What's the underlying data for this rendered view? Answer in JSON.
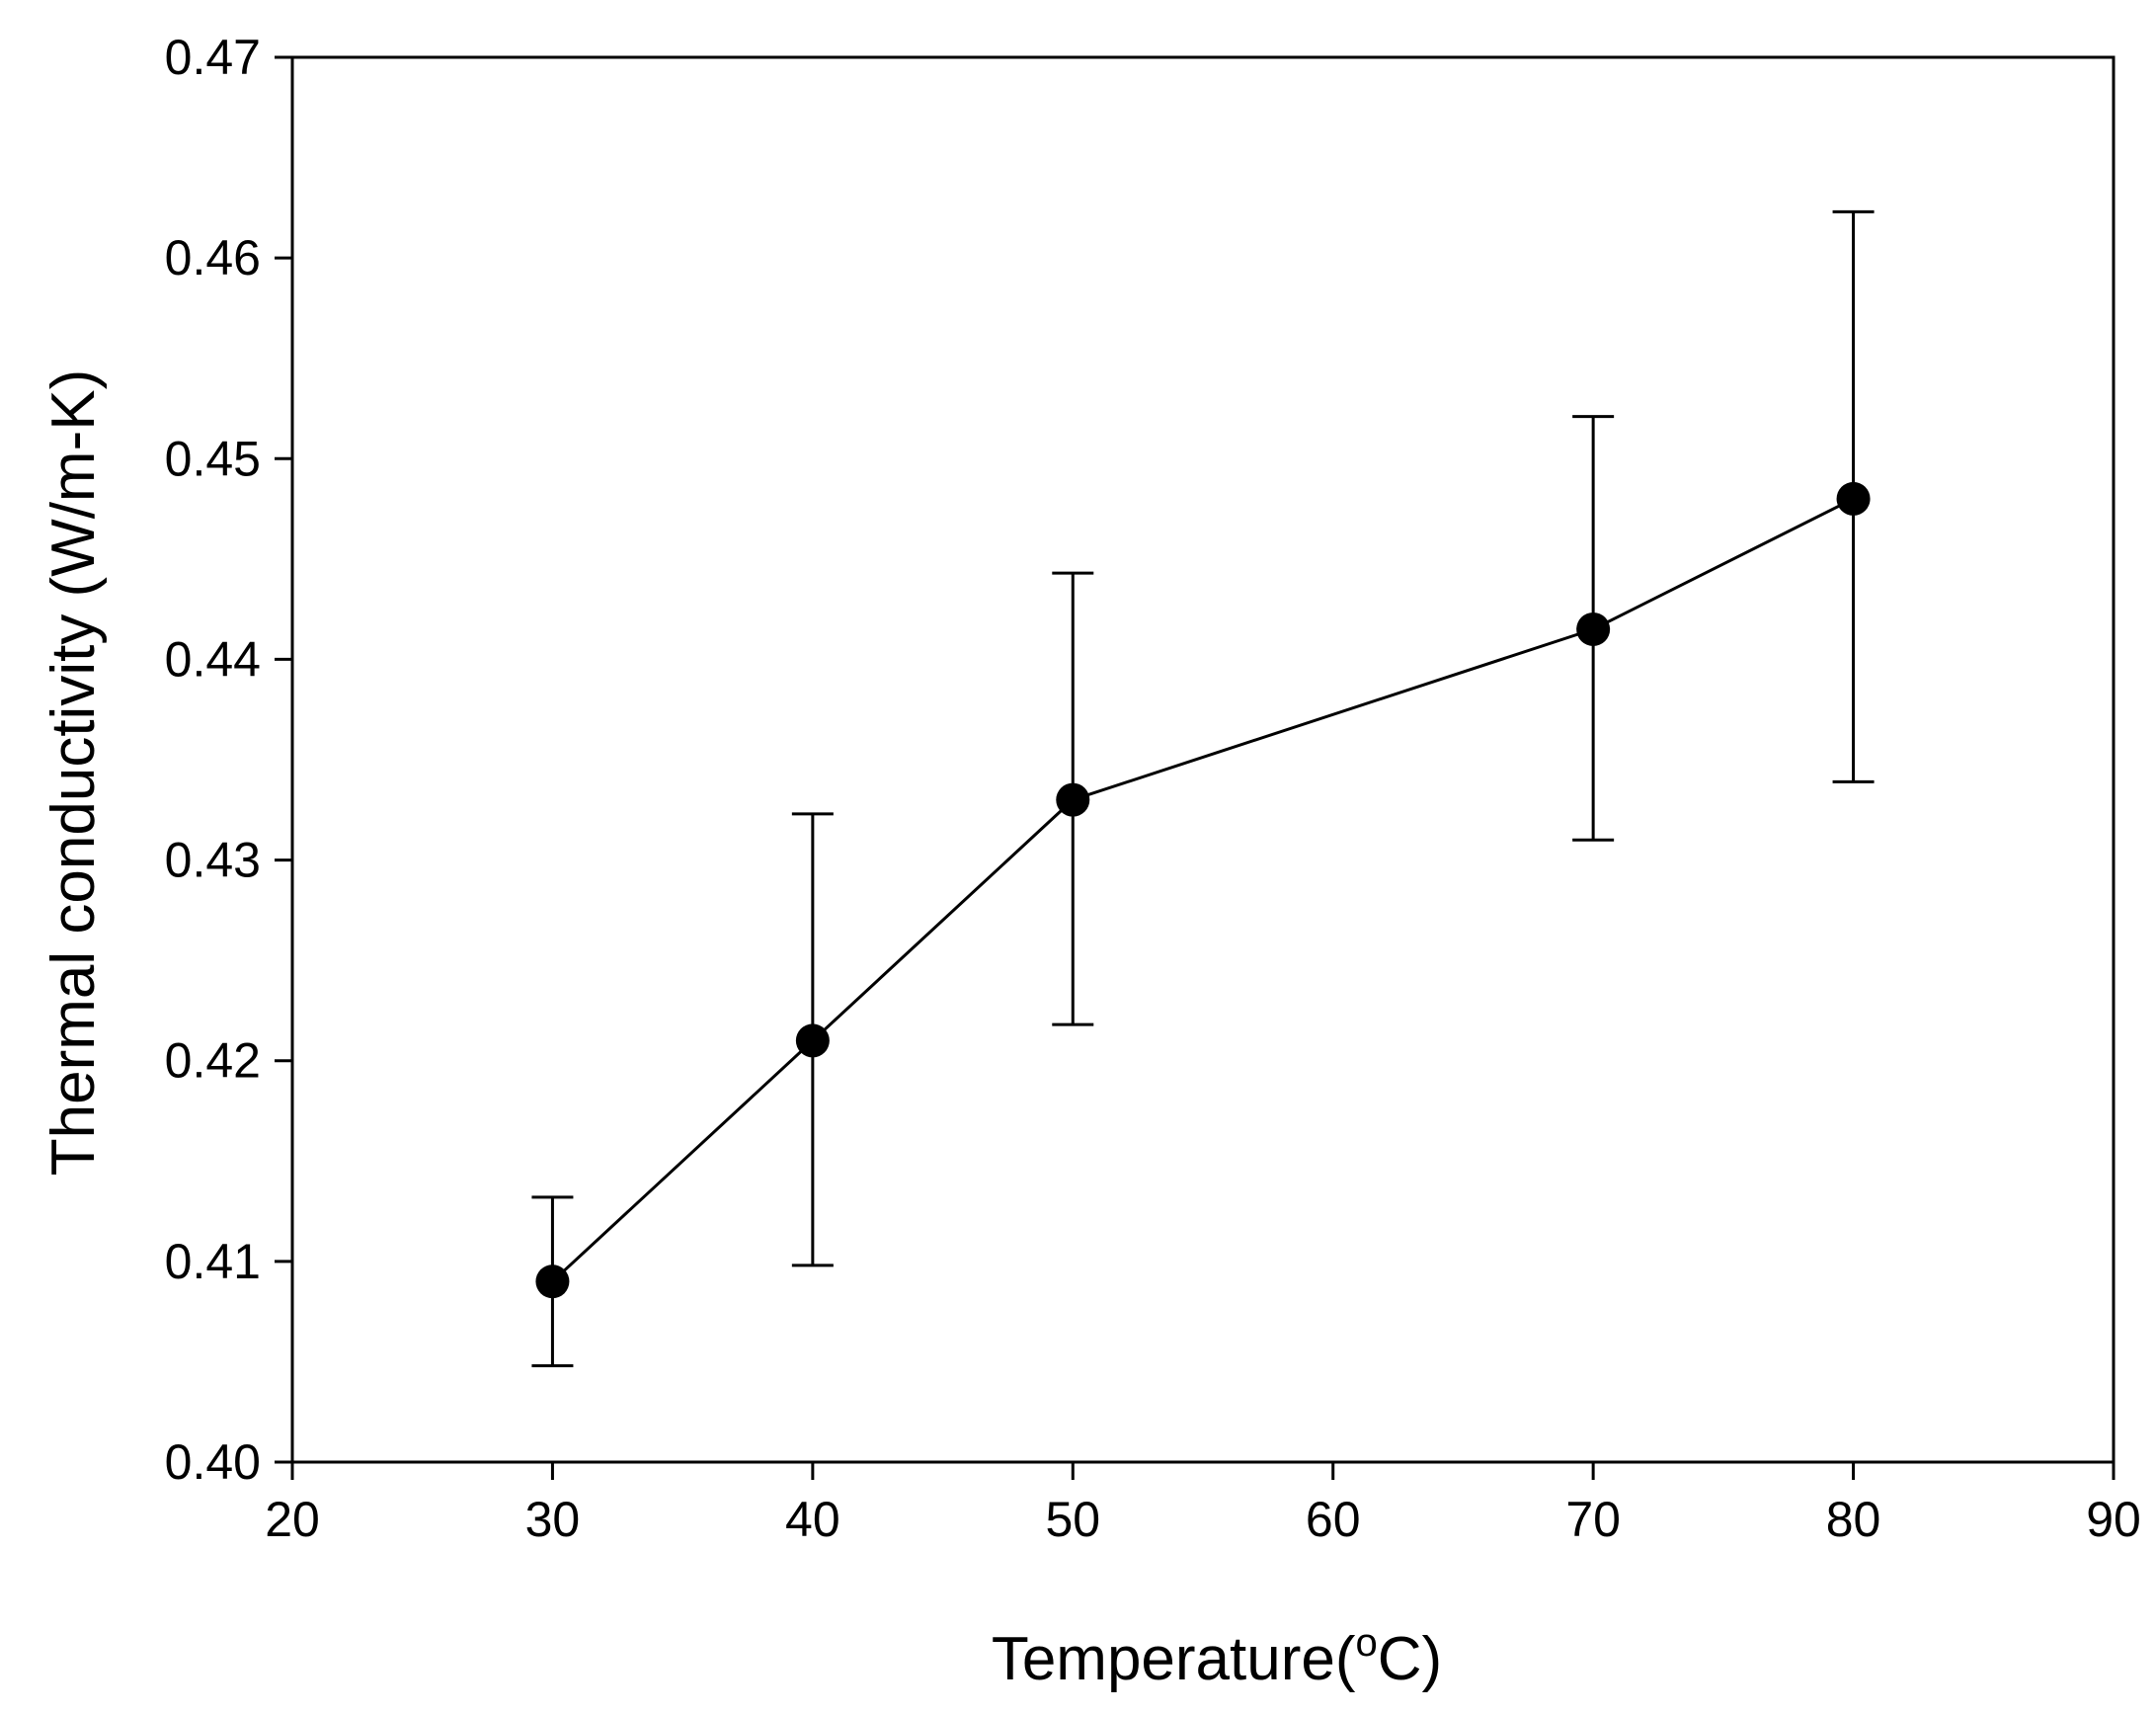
{
  "chart_data": {
    "type": "line",
    "title": "",
    "xlabel": "Temperature(",
    "xlabel_superscript": "o",
    "xlabel_suffix": "C)",
    "ylabel": "Thermal conductivity (W/m-K)",
    "xlim": [
      20,
      90
    ],
    "ylim": [
      0.4,
      0.47
    ],
    "xticks": [
      20,
      30,
      40,
      50,
      60,
      70,
      80,
      90
    ],
    "xtick_labels": [
      "20",
      "30",
      "40",
      "50",
      "60",
      "70",
      "80",
      "90"
    ],
    "yticks": [
      0.4,
      0.41,
      0.42,
      0.43,
      0.44,
      0.45,
      0.46,
      0.47
    ],
    "ytick_labels": [
      "0.40",
      "0.41",
      "0.42",
      "0.43",
      "0.44",
      "0.45",
      "0.46",
      "0.47"
    ],
    "grid": false,
    "series": [
      {
        "name": "Thermal conductivity",
        "color": "#000000",
        "marker": "circle",
        "x": [
          30,
          40,
          50,
          70,
          80
        ],
        "y": [
          0.409,
          0.421,
          0.433,
          0.4415,
          0.448
        ],
        "err_low": [
          0.4048,
          0.4098,
          0.4218,
          0.431,
          0.4339
        ],
        "err_high": [
          0.4132,
          0.4323,
          0.4443,
          0.4521,
          0.4623
        ]
      }
    ]
  }
}
